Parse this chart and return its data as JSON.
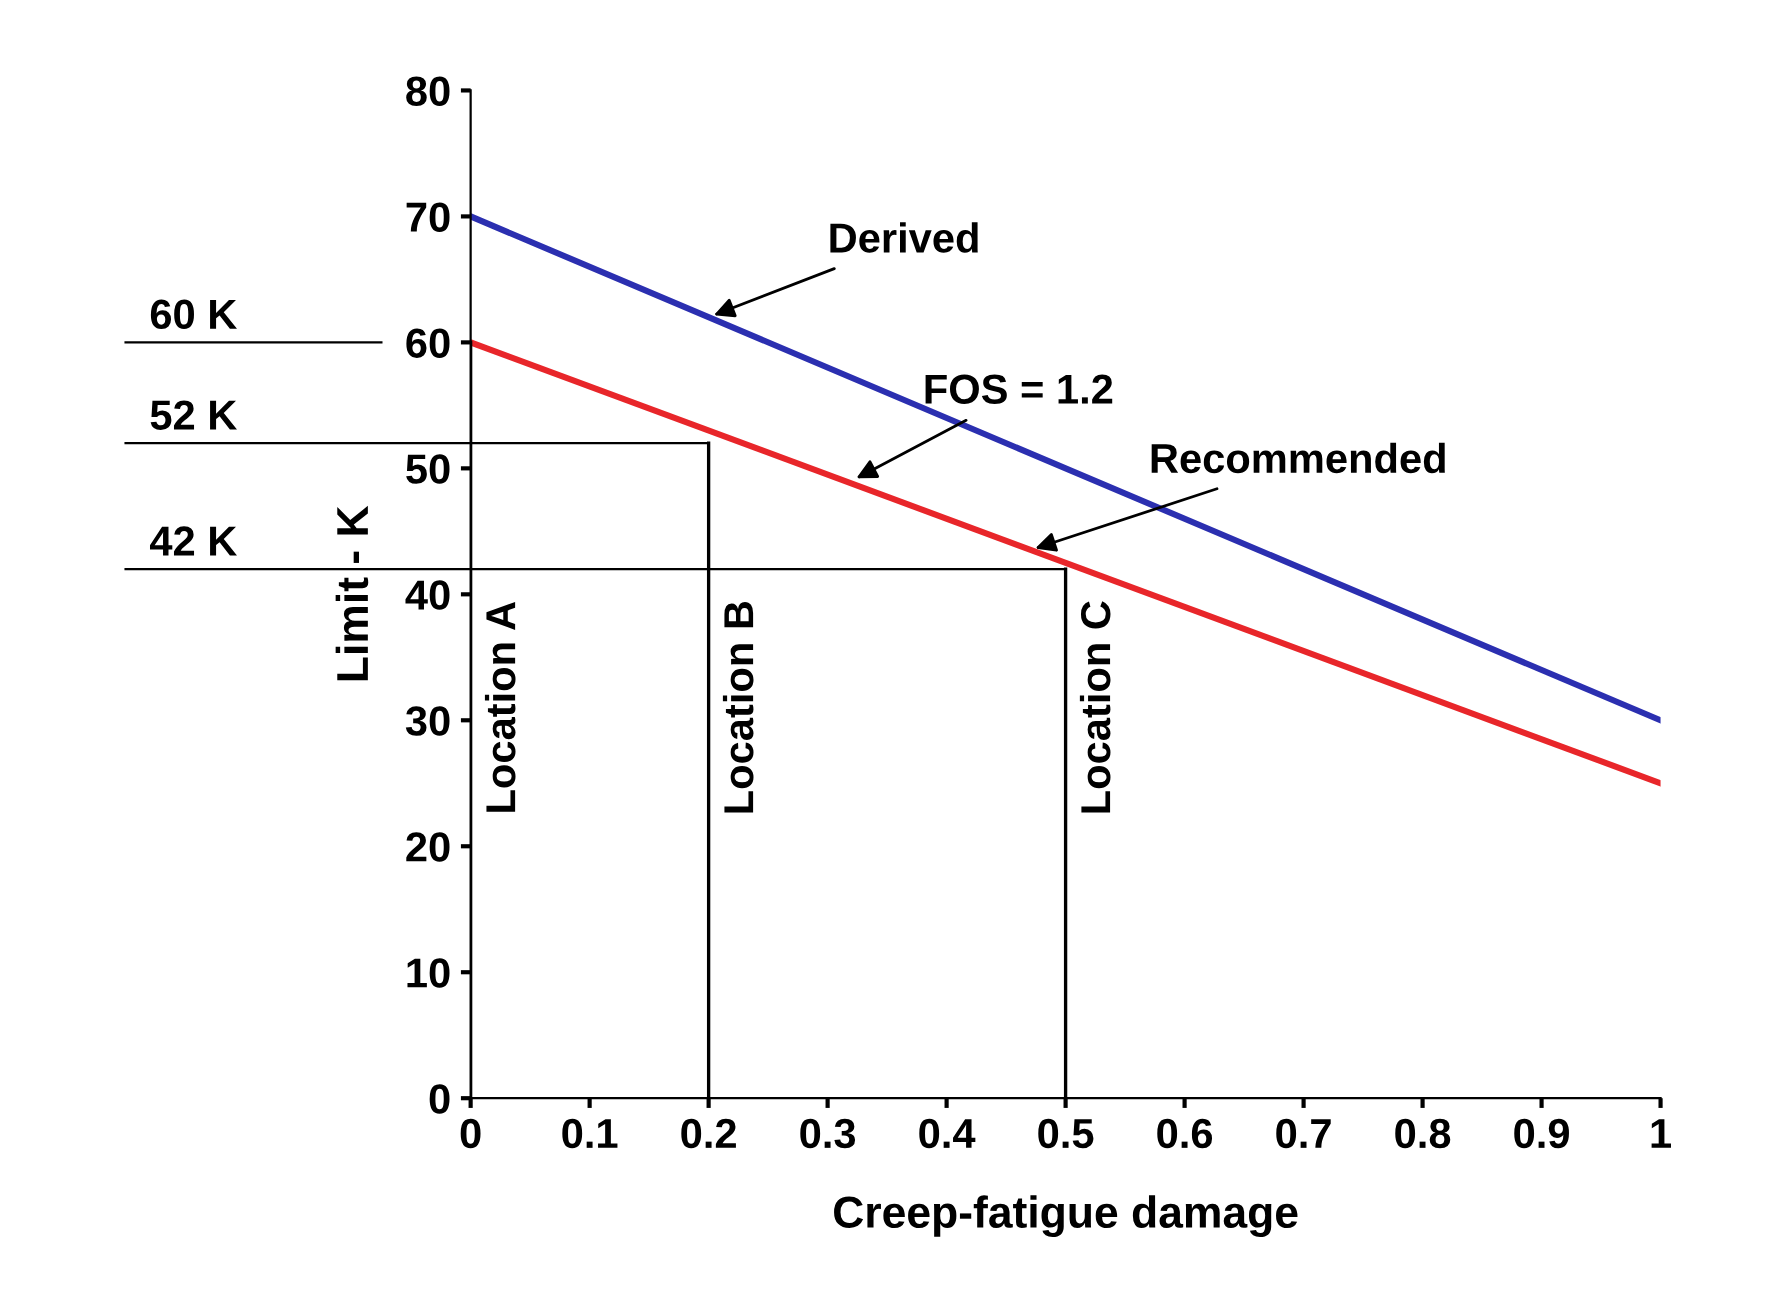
{
  "chart_data": {
    "type": "line",
    "xlabel": "Creep-fatigue damage",
    "ylabel": "Limit - K",
    "x": [
      0,
      1
    ],
    "series": [
      {
        "color": "#2b2fb0",
        "values": [
          70,
          30
        ]
      },
      {
        "color": "#e8262a",
        "values": [
          60,
          25
        ]
      }
    ],
    "xlim": [
      0,
      1
    ],
    "xticks": [
      0,
      0.1,
      0.2,
      0.3,
      0.4,
      0.5,
      0.6,
      0.7,
      0.8,
      0.9,
      1
    ],
    "ylim": [
      0,
      80
    ],
    "yticks": [
      0,
      10,
      20,
      30,
      40,
      50,
      60,
      70,
      80
    ],
    "ref_lines": [
      {
        "axis": "y",
        "value": 60,
        "label": "60 K",
        "color": "#000000"
      },
      {
        "axis": "y",
        "value": 52,
        "label": "52 K",
        "color": "#000000"
      },
      {
        "axis": "y",
        "value": 42,
        "label": "42 K",
        "color": "#000000"
      },
      {
        "axis": "x",
        "value": 0,
        "label": "Location A",
        "color": "#000000"
      },
      {
        "axis": "x",
        "value": 0.2,
        "label": "Location B",
        "color": "#000000"
      },
      {
        "axis": "x",
        "value": 0.5,
        "label": "Location C",
        "color": "#000000"
      }
    ],
    "annotations": [
      {
        "text": "Derived",
        "x": 0.2,
        "y": 62
      },
      {
        "text": "FOS = 1.2",
        "x": 0.32,
        "y": 49
      },
      {
        "text": "Recommended",
        "x": 0.47,
        "y": 43.5
      }
    ],
    "grid": false,
    "legend": false,
    "marker": "none",
    "line_style": "solid"
  }
}
